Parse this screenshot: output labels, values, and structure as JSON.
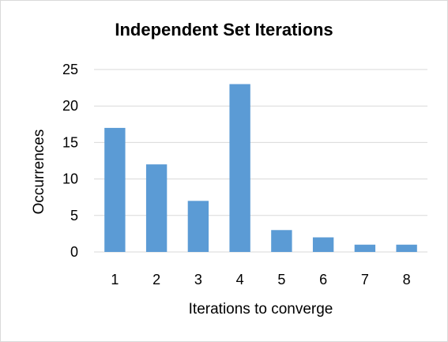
{
  "chart_data": {
    "type": "bar",
    "title": "Independent Set Iterations",
    "xlabel": "Iterations to converge",
    "ylabel": "Occurrences",
    "categories": [
      "1",
      "2",
      "3",
      "4",
      "5",
      "6",
      "7",
      "8"
    ],
    "values": [
      17,
      12,
      7,
      23,
      3,
      2,
      1,
      1
    ],
    "ylim": [
      0,
      25
    ],
    "yticks": [
      "0",
      "5",
      "10",
      "15",
      "20",
      "25"
    ],
    "grid": true,
    "legend": "none",
    "bar_color": "#5b9bd5",
    "grid_color": "#d9d9d9"
  }
}
